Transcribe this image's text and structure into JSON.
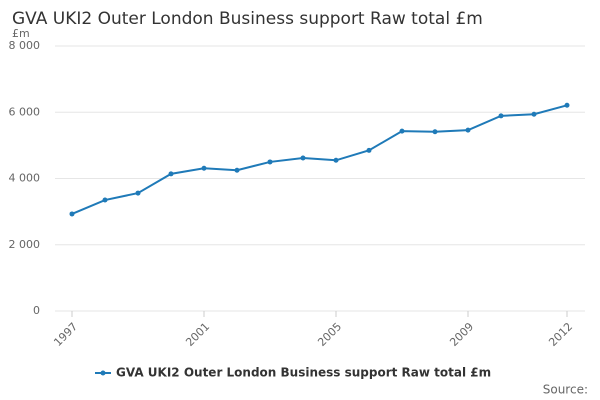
{
  "chart_data": {
    "type": "line",
    "title": "GVA UKI2 Outer London Business support Raw total £m",
    "y_unit": "£m",
    "source": "Source:",
    "x": [
      1997,
      1998,
      1999,
      2000,
      2001,
      2002,
      2003,
      2004,
      2005,
      2006,
      2007,
      2008,
      2009,
      2010,
      2011,
      2012
    ],
    "series": [
      {
        "name": "GVA UKI2 Outer London Business support Raw total £m",
        "color": "#1f7ab8",
        "values": [
          2930,
          3350,
          3560,
          4140,
          4310,
          4250,
          4500,
          4620,
          4550,
          4850,
          5430,
          5410,
          5460,
          5890,
          5940,
          6210
        ]
      }
    ],
    "xlim": [
      1997,
      2012
    ],
    "xticks": [
      1997,
      2001,
      2005,
      2009,
      2012
    ],
    "ylim": [
      0,
      8000
    ],
    "yticks": [
      0,
      {
        "value": 2000,
        "label": "2 000"
      },
      {
        "value": 4000,
        "label": "4 000"
      },
      {
        "value": 6000,
        "label": "6 000"
      },
      {
        "value": 8000,
        "label": "8 000"
      }
    ],
    "grid": true
  }
}
